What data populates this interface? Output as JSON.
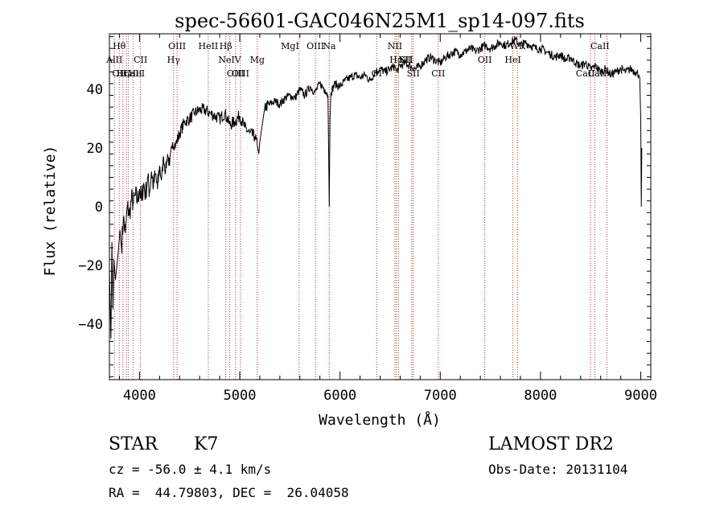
{
  "chart_data": {
    "type": "line",
    "title": "spec-56601-GAC046N25M1_sp14-097.fits",
    "xlabel": "Wavelength (Å)",
    "ylabel": "Flux (relative)",
    "xlim": [
      3700,
      9100
    ],
    "ylim": [
      -59,
      59
    ],
    "x_ticks": [
      4000,
      5000,
      6000,
      7000,
      8000,
      9000
    ],
    "y_ticks": [
      -40,
      -20,
      0,
      20,
      40
    ],
    "grid": false,
    "series": [
      {
        "x": [
          3700,
          3715,
          3725,
          3735,
          3745,
          3760,
          3775,
          3790,
          3805,
          3820,
          3840,
          3860,
          3880,
          3900,
          3920,
          3940,
          3960,
          3980,
          4000,
          4020,
          4040,
          4060,
          4080,
          4100,
          4120,
          4140,
          4160,
          4180,
          4200,
          4220,
          4240,
          4260,
          4280,
          4300,
          4330,
          4360,
          4400,
          4450,
          4500,
          4550,
          4600,
          4650,
          4700,
          4750,
          4800,
          4850,
          4900,
          4950,
          5000,
          5050,
          5100,
          5150,
          5175,
          5190,
          5200,
          5250,
          5300,
          5350,
          5400,
          5450,
          5500,
          5550,
          5600,
          5650,
          5700,
          5750,
          5800,
          5850,
          5880,
          5893,
          5900,
          5910,
          5950,
          6000,
          6050,
          6100,
          6150,
          6200,
          6250,
          6300,
          6350,
          6400,
          6450,
          6500,
          6550,
          6563,
          6600,
          6650,
          6700,
          6750,
          6800,
          6850,
          6900,
          6950,
          7000,
          7050,
          7100,
          7150,
          7200,
          7250,
          7300,
          7350,
          7400,
          7450,
          7500,
          7550,
          7600,
          7650,
          7700,
          7750,
          7800,
          7850,
          7900,
          7950,
          8000,
          8050,
          8100,
          8150,
          8200,
          8250,
          8300,
          8350,
          8400,
          8450,
          8500,
          8550,
          8600,
          8650,
          8700,
          8750,
          8800,
          8850,
          8900,
          8950,
          8980,
          8990,
          9000,
          9005,
          9010
        ],
        "y": [
          -22,
          -45,
          -12,
          -35,
          -18,
          -25,
          -20,
          -15,
          -8,
          -14,
          -4,
          -9,
          0,
          -3,
          3,
          1,
          4,
          2,
          6,
          2,
          8,
          4,
          10,
          5,
          12,
          7,
          11,
          6,
          14,
          9,
          17,
          12,
          18,
          14,
          22,
          21,
          25,
          29,
          30,
          32,
          33,
          33,
          32,
          31,
          30,
          32,
          28,
          29,
          31,
          27,
          25,
          24,
          21,
          18,
          22,
          34,
          35,
          36,
          35,
          37,
          38,
          37,
          40,
          38,
          41,
          39,
          42,
          40,
          38,
          0,
          30,
          39,
          42,
          41,
          43,
          44,
          45,
          44,
          45,
          43,
          46,
          47,
          46,
          47,
          48,
          46,
          48,
          49,
          48,
          47,
          48,
          50,
          51,
          50,
          49,
          51,
          52,
          53,
          52,
          53,
          54,
          53,
          54,
          55,
          54,
          55,
          56,
          55,
          56,
          57,
          55,
          56,
          55,
          54,
          54,
          53,
          52,
          51,
          52,
          50,
          51,
          49,
          48,
          49,
          47,
          48,
          46,
          47,
          45,
          46,
          47,
          46,
          47,
          46,
          45,
          44,
          30,
          0,
          20
        ]
      }
    ],
    "lines": [
      {
        "x": 3750,
        "label": "AlII",
        "row": 2,
        "anchor": "middle"
      },
      {
        "x": 3798,
        "label": "Hθ",
        "row": 1,
        "anchor": "middle"
      },
      {
        "x": 3835,
        "label": "Hη",
        "row": 3,
        "anchor": "middle"
      },
      {
        "x": 3870,
        "label": "OII",
        "row": 3,
        "anchor": "end"
      },
      {
        "x": 3890,
        "label": "HeI",
        "row": 3,
        "anchor": "start"
      },
      {
        "x": 3934,
        "label": "CaII",
        "row": 3,
        "anchor": "middle"
      },
      {
        "x": 4010,
        "label": "CII",
        "row": 2,
        "anchor": "middle"
      },
      {
        "x": 4340,
        "label": "Hγ",
        "row": 2,
        "anchor": "middle"
      },
      {
        "x": 4375,
        "label": "OIII",
        "row": 1,
        "anchor": "middle"
      },
      {
        "x": 4686,
        "label": "HeII",
        "row": 1,
        "anchor": "middle"
      },
      {
        "x": 4861,
        "label": "Hβ",
        "row": 1,
        "anchor": "middle"
      },
      {
        "x": 4900,
        "label": "NeIV",
        "row": 2,
        "anchor": "middle"
      },
      {
        "x": 4959,
        "label": "OIII",
        "row": 3,
        "anchor": "middle"
      },
      {
        "x": 5007,
        "label": "OIII",
        "row": 3,
        "anchor": "middle"
      },
      {
        "x": 5175,
        "label": "Mg",
        "row": 2,
        "anchor": "middle"
      },
      {
        "x": 5592,
        "label": "MgI",
        "row": 1,
        "anchor": "end"
      },
      {
        "x": 5755,
        "label": "OIII",
        "row": 1,
        "anchor": "middle"
      },
      {
        "x": 5893,
        "label": "Na",
        "row": 1,
        "anchor": "middle"
      },
      {
        "x": 6366,
        "label": "OI",
        "row": 3,
        "anchor": "middle"
      },
      {
        "x": 6548,
        "label": "NII",
        "row": 1,
        "anchor": "middle"
      },
      {
        "x": 6563,
        "label": "Hα",
        "row": 2,
        "anchor": "middle"
      },
      {
        "x": 6583,
        "label": "NII",
        "row": 2,
        "anchor": "start"
      },
      {
        "x": 6716,
        "label": "SII",
        "row": 2,
        "anchor": "end"
      },
      {
        "x": 6731,
        "label": "SII",
        "row": 3,
        "anchor": "middle"
      },
      {
        "x": 6980,
        "label": "CII",
        "row": 3,
        "anchor": "middle"
      },
      {
        "x": 7444,
        "label": "OII",
        "row": 2,
        "anchor": "middle"
      },
      {
        "x": 7725,
        "label": "HeI",
        "row": 2,
        "anchor": "middle"
      },
      {
        "x": 7771,
        "label": "WR",
        "row": 1,
        "anchor": "middle"
      },
      {
        "x": 8498,
        "label": "CaII",
        "row": 1,
        "anchor": "start"
      },
      {
        "x": 8542,
        "label": "CaII",
        "row": 3,
        "anchor": "end"
      },
      {
        "x": 8662,
        "label": "CaII",
        "row": 3,
        "anchor": "end"
      }
    ]
  },
  "info": {
    "class": "STAR",
    "subclass": "K7",
    "survey": "LAMOST DR2",
    "cz": "cz = -56.0 ± 4.1 km/s",
    "obs_date": "Obs-Date: 20131104",
    "coords": "RA =  44.79803, DEC =  26.04058"
  }
}
